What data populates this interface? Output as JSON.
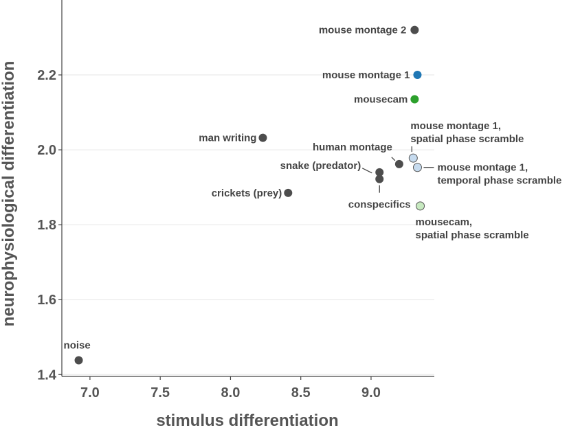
{
  "chart_data": {
    "type": "scatter",
    "xlabel": "stimulus differentiation",
    "ylabel": "neurophysiological differentiation",
    "xlim": [
      6.8,
      9.45
    ],
    "ylim": [
      1.395,
      2.4
    ],
    "x_ticks": [
      "7.0",
      "7.5",
      "8.0",
      "8.5",
      "9.0"
    ],
    "y_ticks": [
      "1.4",
      "1.6",
      "1.8",
      "2.0",
      "2.2"
    ],
    "grid": "horizontal",
    "points": [
      {
        "label": "noise",
        "x": 6.92,
        "y": 1.438,
        "color": "#4d4d4d"
      },
      {
        "label": "man writing",
        "x": 8.23,
        "y": 2.032,
        "color": "#4d4d4d"
      },
      {
        "label": "crickets (prey)",
        "x": 8.41,
        "y": 1.885,
        "color": "#4d4d4d"
      },
      {
        "label": "snake (predator)",
        "x": 9.06,
        "y": 1.94,
        "color": "#4d4d4d"
      },
      {
        "label": "conspecifics",
        "x": 9.06,
        "y": 1.922,
        "color": "#4d4d4d"
      },
      {
        "label": "human montage",
        "x": 9.2,
        "y": 1.962,
        "color": "#4d4d4d"
      },
      {
        "label": "mouse montage 2",
        "x": 9.31,
        "y": 2.32,
        "color": "#4d4d4d"
      },
      {
        "label": "mouse montage 1",
        "x": 9.33,
        "y": 2.2,
        "color": "#1f77b4"
      },
      {
        "label": "mousecam",
        "x": 9.31,
        "y": 2.135,
        "color": "#2ca02c"
      },
      {
        "label": [
          "mouse montage 1,",
          "spatial phase scramble"
        ],
        "x": 9.3,
        "y": 1.978,
        "color": "#c6dbef"
      },
      {
        "label": [
          "mouse montage 1,",
          "temporal phase scramble"
        ],
        "x": 9.33,
        "y": 1.953,
        "color": "#c6dbef"
      },
      {
        "label": [
          "mousecam,",
          "spatial phase scramble"
        ],
        "x": 9.35,
        "y": 1.85,
        "color": "#c7e9c0"
      }
    ]
  }
}
